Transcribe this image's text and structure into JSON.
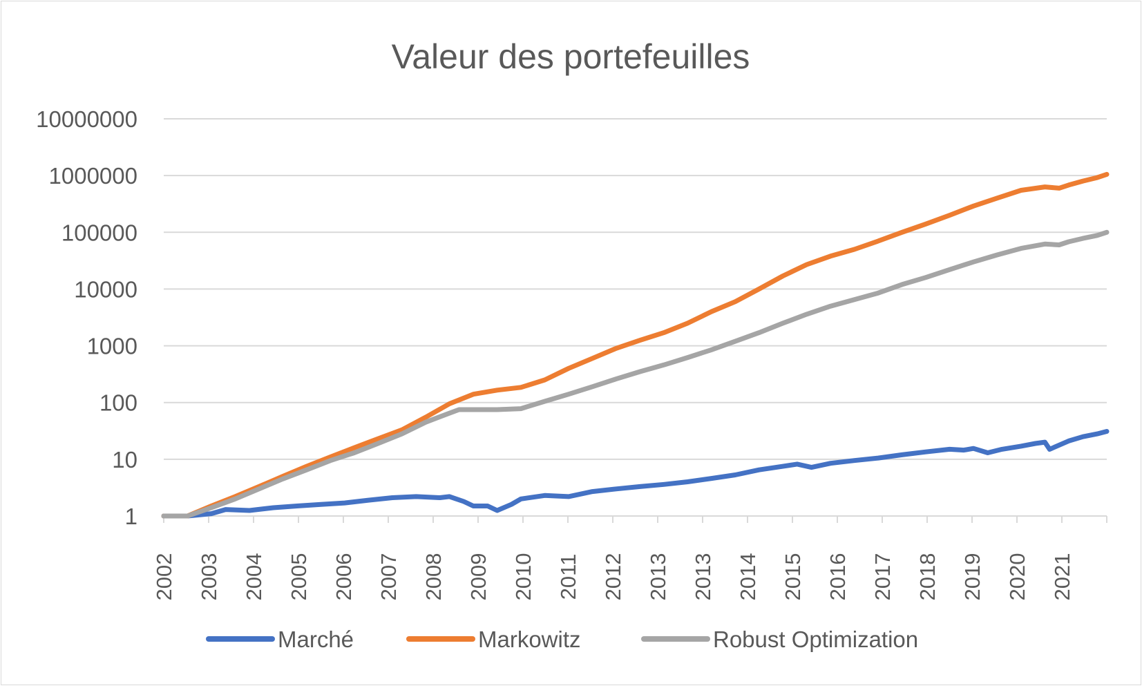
{
  "chart_data": {
    "type": "line",
    "title": "Valeur des portefeuilles",
    "xlabel": "",
    "ylabel": "",
    "y_scale": "log",
    "ylim": [
      1,
      10000000
    ],
    "y_ticks": [
      "1",
      "10",
      "100",
      "1000",
      "10000",
      "100000",
      "1000000",
      "10000000"
    ],
    "x_tick_labels": [
      "2002",
      "2003",
      "2004",
      "2005",
      "2006",
      "2007",
      "2008",
      "2009",
      "2010",
      "2011",
      "2012",
      "2013",
      "2013",
      "2014",
      "2015",
      "2016",
      "2017",
      "2018",
      "2019",
      "2020",
      "2021"
    ],
    "xlim": [
      2002.0,
      2021.8
    ],
    "grid": true,
    "legend_position": "bottom",
    "series": [
      {
        "name": "Marché",
        "color": "#4472C4",
        "points": [
          [
            2002.0,
            1
          ],
          [
            2002.5,
            1
          ],
          [
            2003.0,
            1.1
          ],
          [
            2003.3,
            1.3
          ],
          [
            2003.8,
            1.25
          ],
          [
            2004.3,
            1.4
          ],
          [
            2004.8,
            1.5
          ],
          [
            2005.3,
            1.6
          ],
          [
            2005.8,
            1.7
          ],
          [
            2006.3,
            1.9
          ],
          [
            2006.8,
            2.1
          ],
          [
            2007.3,
            2.2
          ],
          [
            2007.8,
            2.1
          ],
          [
            2008.0,
            2.2
          ],
          [
            2008.3,
            1.8
          ],
          [
            2008.5,
            1.5
          ],
          [
            2008.8,
            1.5
          ],
          [
            2009.0,
            1.25
          ],
          [
            2009.3,
            1.6
          ],
          [
            2009.5,
            2.0
          ],
          [
            2010.0,
            2.3
          ],
          [
            2010.5,
            2.2
          ],
          [
            2011.0,
            2.7
          ],
          [
            2011.5,
            3.0
          ],
          [
            2012.0,
            3.3
          ],
          [
            2012.5,
            3.6
          ],
          [
            2013.0,
            4.0
          ],
          [
            2013.5,
            4.6
          ],
          [
            2014.0,
            5.3
          ],
          [
            2014.5,
            6.5
          ],
          [
            2015.0,
            7.5
          ],
          [
            2015.3,
            8.2
          ],
          [
            2015.6,
            7.2
          ],
          [
            2016.0,
            8.5
          ],
          [
            2016.5,
            9.5
          ],
          [
            2017.0,
            10.5
          ],
          [
            2017.5,
            12
          ],
          [
            2018.0,
            13.5
          ],
          [
            2018.5,
            15
          ],
          [
            2018.8,
            14.5
          ],
          [
            2019.0,
            15.5
          ],
          [
            2019.3,
            13
          ],
          [
            2019.6,
            15
          ],
          [
            2020.0,
            17
          ],
          [
            2020.3,
            19
          ],
          [
            2020.5,
            20
          ],
          [
            2020.6,
            15
          ],
          [
            2021.0,
            21
          ],
          [
            2021.3,
            25
          ],
          [
            2021.6,
            28
          ],
          [
            2021.8,
            31
          ]
        ]
      },
      {
        "name": "Markowitz",
        "color": "#ED7D31",
        "points": [
          [
            2002.0,
            1
          ],
          [
            2002.5,
            1
          ],
          [
            2003.0,
            1.5
          ],
          [
            2003.5,
            2.2
          ],
          [
            2004.0,
            3.3
          ],
          [
            2004.5,
            5
          ],
          [
            2005.0,
            7.5
          ],
          [
            2005.5,
            11
          ],
          [
            2006.0,
            16
          ],
          [
            2006.5,
            23
          ],
          [
            2007.0,
            33
          ],
          [
            2007.5,
            55
          ],
          [
            2008.0,
            95
          ],
          [
            2008.5,
            140
          ],
          [
            2009.0,
            165
          ],
          [
            2009.5,
            185
          ],
          [
            2010.0,
            250
          ],
          [
            2010.5,
            400
          ],
          [
            2011.0,
            600
          ],
          [
            2011.5,
            900
          ],
          [
            2012.0,
            1250
          ],
          [
            2012.5,
            1700
          ],
          [
            2013.0,
            2500
          ],
          [
            2013.5,
            4000
          ],
          [
            2014.0,
            6000
          ],
          [
            2014.5,
            10000
          ],
          [
            2015.0,
            17000
          ],
          [
            2015.5,
            27000
          ],
          [
            2016.0,
            38000
          ],
          [
            2016.5,
            50000
          ],
          [
            2017.0,
            70000
          ],
          [
            2017.5,
            100000
          ],
          [
            2018.0,
            140000
          ],
          [
            2018.5,
            200000
          ],
          [
            2019.0,
            290000
          ],
          [
            2019.5,
            400000
          ],
          [
            2020.0,
            550000
          ],
          [
            2020.5,
            630000
          ],
          [
            2020.8,
            600000
          ],
          [
            2021.0,
            680000
          ],
          [
            2021.3,
            800000
          ],
          [
            2021.6,
            920000
          ],
          [
            2021.8,
            1050000
          ]
        ]
      },
      {
        "name": "Robust Optimization",
        "color": "#A5A5A5",
        "points": [
          [
            2002.0,
            1
          ],
          [
            2002.5,
            1
          ],
          [
            2003.0,
            1.4
          ],
          [
            2003.5,
            2
          ],
          [
            2004.0,
            3
          ],
          [
            2004.5,
            4.5
          ],
          [
            2005.0,
            6.5
          ],
          [
            2005.5,
            9.5
          ],
          [
            2006.0,
            13
          ],
          [
            2006.5,
            19
          ],
          [
            2007.0,
            28
          ],
          [
            2007.5,
            45
          ],
          [
            2008.0,
            65
          ],
          [
            2008.2,
            75
          ],
          [
            2008.5,
            75
          ],
          [
            2009.0,
            75
          ],
          [
            2009.5,
            78
          ],
          [
            2010.0,
            105
          ],
          [
            2010.5,
            140
          ],
          [
            2011.0,
            190
          ],
          [
            2011.5,
            260
          ],
          [
            2012.0,
            350
          ],
          [
            2012.5,
            460
          ],
          [
            2013.0,
            620
          ],
          [
            2013.5,
            850
          ],
          [
            2014.0,
            1200
          ],
          [
            2014.5,
            1700
          ],
          [
            2015.0,
            2500
          ],
          [
            2015.5,
            3600
          ],
          [
            2016.0,
            5000
          ],
          [
            2016.5,
            6500
          ],
          [
            2017.0,
            8500
          ],
          [
            2017.5,
            12000
          ],
          [
            2018.0,
            16000
          ],
          [
            2018.5,
            22000
          ],
          [
            2019.0,
            30000
          ],
          [
            2019.5,
            40000
          ],
          [
            2020.0,
            52000
          ],
          [
            2020.5,
            62000
          ],
          [
            2020.8,
            60000
          ],
          [
            2021.0,
            68000
          ],
          [
            2021.3,
            78000
          ],
          [
            2021.6,
            88000
          ],
          [
            2021.8,
            100000
          ]
        ]
      }
    ]
  }
}
